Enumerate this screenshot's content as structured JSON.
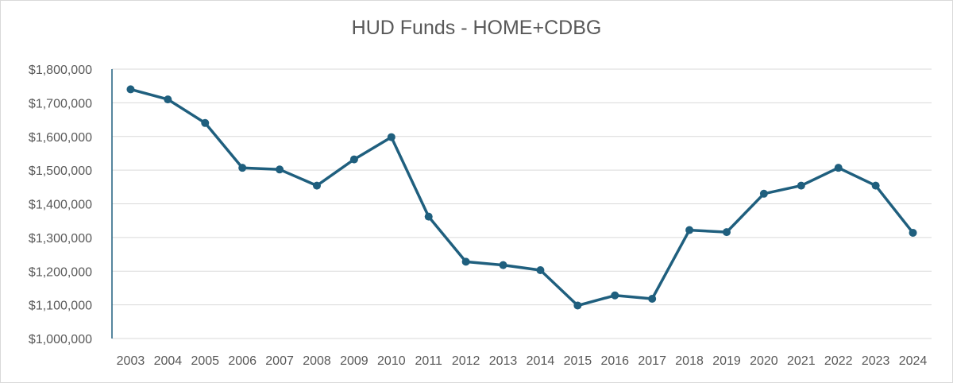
{
  "chart_data": {
    "type": "line",
    "title": "HUD Funds - HOME+CDBG",
    "xlabel": "",
    "ylabel": "",
    "categories": [
      "2003",
      "2004",
      "2005",
      "2006",
      "2007",
      "2008",
      "2009",
      "2010",
      "2011",
      "2012",
      "2013",
      "2014",
      "2015",
      "2016",
      "2017",
      "2018",
      "2019",
      "2020",
      "2021",
      "2022",
      "2023",
      "2024"
    ],
    "series": [
      {
        "values": [
          1740000,
          1710000,
          1640000,
          1507000,
          1502000,
          1454000,
          1532000,
          1598000,
          1362000,
          1228000,
          1218000,
          1203000,
          1098000,
          1128000,
          1118000,
          1322000,
          1316000,
          1430000,
          1454000,
          1507000,
          1454000,
          1314000
        ],
        "color": "#1f5f7e"
      }
    ],
    "ylim": [
      1000000,
      1800000
    ],
    "yticks": [
      1000000,
      1100000,
      1200000,
      1300000,
      1400000,
      1500000,
      1600000,
      1700000,
      1800000
    ],
    "ytick_labels": [
      "$1,000,000",
      "$1,100,000",
      "$1,200,000",
      "$1,300,000",
      "$1,400,000",
      "$1,500,000",
      "$1,600,000",
      "$1,700,000",
      "$1,800,000"
    ],
    "grid": true,
    "legend": "none",
    "colors": {
      "gridline": "#d9d9d9",
      "axis": "#1f5f7e",
      "text": "#595959"
    }
  }
}
